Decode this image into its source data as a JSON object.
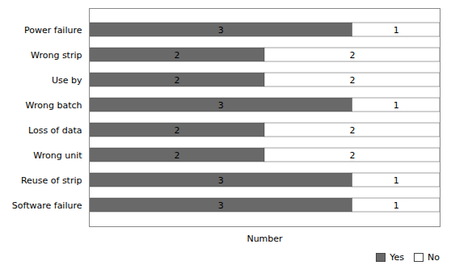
{
  "chart_data": {
    "type": "bar",
    "orientation": "horizontal",
    "stacked": true,
    "xlabel": "Number",
    "categories": [
      "Power failure",
      "Wrong strip",
      "Use by",
      "Wrong batch",
      "Loss of data",
      "Wrong unit",
      "Reuse of strip",
      "Software failure"
    ],
    "series": [
      {
        "name": "Yes",
        "color": "#696969",
        "values": [
          3,
          2,
          2,
          3,
          2,
          2,
          3,
          3
        ]
      },
      {
        "name": "No",
        "color": "#ffffff",
        "values": [
          1,
          2,
          2,
          1,
          2,
          2,
          1,
          1
        ]
      }
    ],
    "xlim": [
      0,
      4
    ],
    "xticks": [],
    "tick_labels": "y",
    "data_labels": true,
    "legend": "lower right",
    "grid": false
  }
}
